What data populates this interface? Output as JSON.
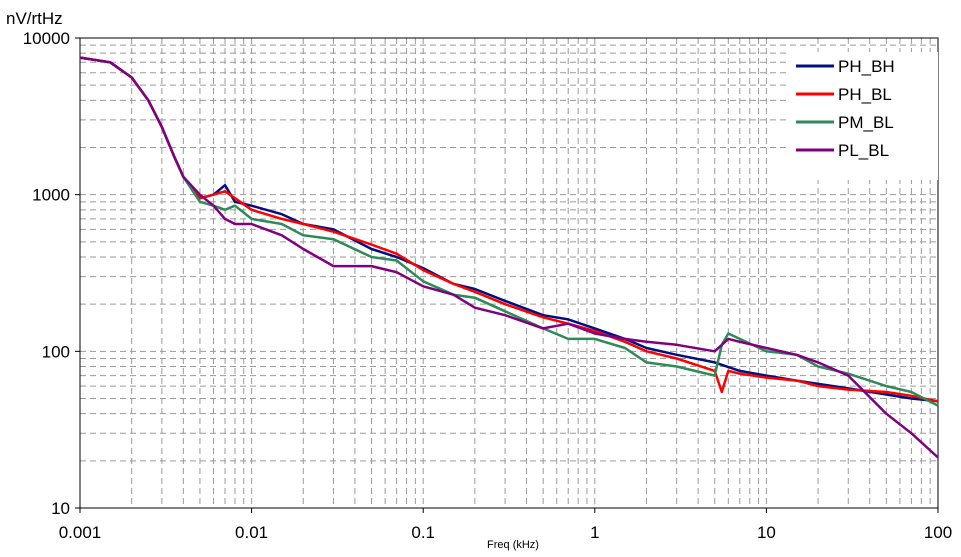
{
  "chart_data": {
    "type": "line",
    "title": "",
    "ylabel": "nV/rtHz",
    "xlabel": "Freq (kHz)",
    "xscale": "log",
    "yscale": "log",
    "xlim": [
      0.001,
      100
    ],
    "ylim": [
      10,
      10000
    ],
    "x_ticks": [
      "0.001",
      "0.01",
      "0.1",
      "1",
      "10",
      "100"
    ],
    "y_ticks": [
      "10",
      "100",
      "1000",
      "10000"
    ],
    "grid": "dashed major and minor",
    "legend_position": "top-right",
    "series": [
      {
        "name": "PH_BH",
        "color": "#001080",
        "points": [
          [
            0.001,
            7500
          ],
          [
            0.0015,
            7000
          ],
          [
            0.002,
            5600
          ],
          [
            0.0025,
            4000
          ],
          [
            0.003,
            2700
          ],
          [
            0.0035,
            1800
          ],
          [
            0.004,
            1300
          ],
          [
            0.005,
            950
          ],
          [
            0.006,
            1000
          ],
          [
            0.007,
            1150
          ],
          [
            0.008,
            900
          ],
          [
            0.01,
            850
          ],
          [
            0.015,
            750
          ],
          [
            0.02,
            650
          ],
          [
            0.03,
            600
          ],
          [
            0.05,
            450
          ],
          [
            0.07,
            400
          ],
          [
            0.1,
            340
          ],
          [
            0.15,
            270
          ],
          [
            0.2,
            250
          ],
          [
            0.3,
            210
          ],
          [
            0.5,
            170
          ],
          [
            0.7,
            160
          ],
          [
            1,
            140
          ],
          [
            1.5,
            120
          ],
          [
            2,
            105
          ],
          [
            3,
            95
          ],
          [
            5,
            85
          ],
          [
            7,
            75
          ],
          [
            10,
            70
          ],
          [
            15,
            65
          ],
          [
            20,
            62
          ],
          [
            30,
            58
          ],
          [
            50,
            53
          ],
          [
            70,
            50
          ],
          [
            100,
            48
          ]
        ]
      },
      {
        "name": "PH_BL",
        "color": "#ff0000",
        "points": [
          [
            0.001,
            7500
          ],
          [
            0.0015,
            7000
          ],
          [
            0.002,
            5600
          ],
          [
            0.0025,
            4000
          ],
          [
            0.003,
            2700
          ],
          [
            0.0035,
            1800
          ],
          [
            0.004,
            1300
          ],
          [
            0.005,
            950
          ],
          [
            0.006,
            1000
          ],
          [
            0.007,
            1050
          ],
          [
            0.008,
            950
          ],
          [
            0.01,
            800
          ],
          [
            0.015,
            700
          ],
          [
            0.02,
            650
          ],
          [
            0.03,
            580
          ],
          [
            0.05,
            480
          ],
          [
            0.07,
            420
          ],
          [
            0.1,
            330
          ],
          [
            0.15,
            270
          ],
          [
            0.2,
            240
          ],
          [
            0.3,
            200
          ],
          [
            0.5,
            165
          ],
          [
            0.7,
            150
          ],
          [
            1,
            135
          ],
          [
            1.5,
            115
          ],
          [
            2,
            100
          ],
          [
            3,
            90
          ],
          [
            5,
            75
          ],
          [
            5.5,
            55
          ],
          [
            6,
            75
          ],
          [
            7,
            72
          ],
          [
            10,
            68
          ],
          [
            15,
            65
          ],
          [
            20,
            60
          ],
          [
            30,
            57
          ],
          [
            50,
            55
          ],
          [
            70,
            52
          ],
          [
            100,
            48
          ]
        ]
      },
      {
        "name": "PM_BL",
        "color": "#2e8b57",
        "points": [
          [
            0.001,
            7500
          ],
          [
            0.0015,
            7000
          ],
          [
            0.002,
            5600
          ],
          [
            0.0025,
            4000
          ],
          [
            0.003,
            2700
          ],
          [
            0.0035,
            1800
          ],
          [
            0.004,
            1300
          ],
          [
            0.005,
            900
          ],
          [
            0.006,
            850
          ],
          [
            0.007,
            800
          ],
          [
            0.008,
            850
          ],
          [
            0.01,
            700
          ],
          [
            0.015,
            650
          ],
          [
            0.02,
            550
          ],
          [
            0.03,
            520
          ],
          [
            0.05,
            400
          ],
          [
            0.07,
            380
          ],
          [
            0.1,
            280
          ],
          [
            0.15,
            230
          ],
          [
            0.2,
            220
          ],
          [
            0.3,
            180
          ],
          [
            0.5,
            140
          ],
          [
            0.7,
            120
          ],
          [
            1,
            120
          ],
          [
            1.5,
            105
          ],
          [
            2,
            85
          ],
          [
            3,
            80
          ],
          [
            5,
            70
          ],
          [
            5.5,
            110
          ],
          [
            6,
            130
          ],
          [
            7,
            120
          ],
          [
            10,
            100
          ],
          [
            15,
            95
          ],
          [
            20,
            80
          ],
          [
            30,
            72
          ],
          [
            50,
            60
          ],
          [
            70,
            55
          ],
          [
            100,
            45
          ]
        ]
      },
      {
        "name": "PL_BL",
        "color": "#800080",
        "points": [
          [
            0.001,
            7500
          ],
          [
            0.0015,
            7000
          ],
          [
            0.002,
            5600
          ],
          [
            0.0025,
            4000
          ],
          [
            0.003,
            2700
          ],
          [
            0.0035,
            1800
          ],
          [
            0.004,
            1300
          ],
          [
            0.005,
            1000
          ],
          [
            0.006,
            850
          ],
          [
            0.007,
            700
          ],
          [
            0.008,
            650
          ],
          [
            0.01,
            650
          ],
          [
            0.015,
            550
          ],
          [
            0.02,
            450
          ],
          [
            0.03,
            350
          ],
          [
            0.05,
            350
          ],
          [
            0.07,
            320
          ],
          [
            0.1,
            260
          ],
          [
            0.15,
            230
          ],
          [
            0.2,
            190
          ],
          [
            0.3,
            170
          ],
          [
            0.5,
            140
          ],
          [
            0.7,
            150
          ],
          [
            1,
            130
          ],
          [
            1.5,
            120
          ],
          [
            2,
            115
          ],
          [
            3,
            110
          ],
          [
            5,
            100
          ],
          [
            6,
            120
          ],
          [
            7,
            115
          ],
          [
            10,
            105
          ],
          [
            15,
            95
          ],
          [
            20,
            85
          ],
          [
            30,
            70
          ],
          [
            50,
            40
          ],
          [
            70,
            30
          ],
          [
            100,
            21
          ]
        ]
      }
    ]
  }
}
